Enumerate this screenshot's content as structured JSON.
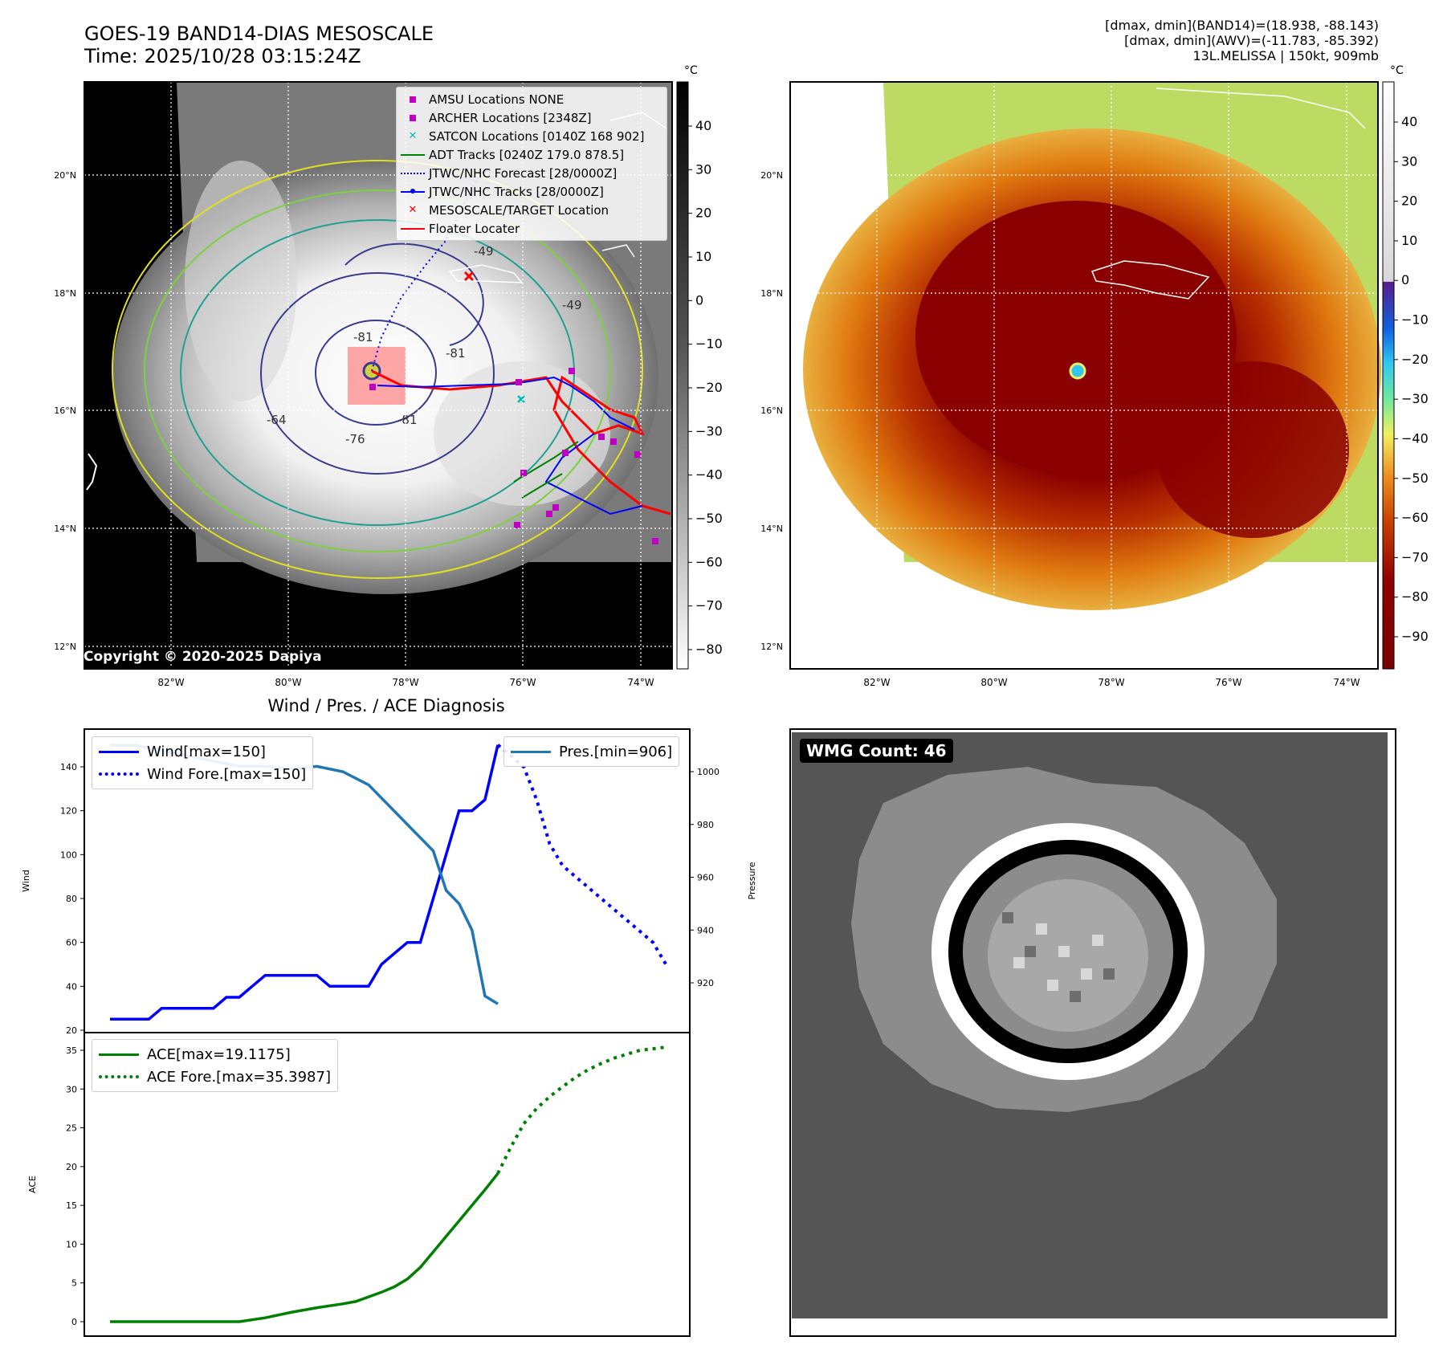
{
  "header": {
    "title_line1": "GOES-19 BAND14-DIAS MESOSCALE",
    "title_line2": "Time: 2025/10/28 03:15:24Z",
    "info_line1": "[dmax, dmin](BAND14)=(18.938, -88.143)",
    "info_line2": "[dmax, dmin](AWV)=(-11.783, -85.392)",
    "info_line3": "13L.MELISSA | 150kt, 909mb"
  },
  "map": {
    "lat_labels": [
      "20°N",
      "18°N",
      "16°N",
      "14°N",
      "12°N"
    ],
    "lon_labels": [
      "82°W",
      "80°W",
      "78°W",
      "76°W",
      "74°W"
    ],
    "contour_labels": [
      "-64",
      "-76",
      "-81",
      "-81",
      "-81",
      "-49",
      "-49"
    ],
    "copyright": "Copyright © 2020-2025 Dapiya",
    "colors": {
      "track_red": "#ff0000",
      "jtwc_blue": "#0000ff",
      "adt_green": "#008000",
      "amsu_magenta": "#c000c0",
      "satcon_cyan": "#00bcbc"
    }
  },
  "legend": {
    "items": [
      {
        "label": "AMSU Locations NONE",
        "icon": "magenta-square"
      },
      {
        "label": "ARCHER Locations [2348Z]",
        "icon": "magenta-square"
      },
      {
        "label": "SATCON Locations [0140Z 168 902]",
        "icon": "cyan-x"
      },
      {
        "label": "ADT Tracks [0240Z 179.0 878.5]",
        "icon": "green-line"
      },
      {
        "label": "JTWC/NHC Forecast [28/0000Z]",
        "icon": "blue-dotted-line"
      },
      {
        "label": "JTWC/NHC Tracks [28/0000Z]",
        "icon": "blue-line-dot"
      },
      {
        "label": "MESOSCALE/TARGET Location",
        "icon": "red-x"
      },
      {
        "label": "Floater Locater",
        "icon": "red-line"
      }
    ]
  },
  "colorbar_left": {
    "unit": "°C",
    "ticks": [
      "40",
      "30",
      "20",
      "10",
      "0",
      "−10",
      "−20",
      "−30",
      "−40",
      "−50",
      "−60",
      "−70",
      "−80"
    ]
  },
  "colorbar_right": {
    "unit": "°C",
    "ticks": [
      "40",
      "30",
      "20",
      "10",
      "0",
      "−10",
      "−20",
      "−30",
      "−40",
      "−50",
      "−60",
      "−70",
      "−80",
      "−90"
    ]
  },
  "wmg": {
    "label": "WMG Count: 46"
  },
  "chart_data": [
    {
      "type": "line",
      "title": "Wind / Pres. / ACE Diagnosis",
      "ylabel": "Wind",
      "y2label": "Pressure",
      "ylim": [
        20,
        154
      ],
      "y2lim": [
        906,
        1012
      ],
      "yticks": [
        "140",
        "120",
        "100",
        "80",
        "60",
        "40",
        "20"
      ],
      "y2ticks": [
        "1000",
        "980",
        "960",
        "940",
        "920"
      ],
      "series": [
        {
          "name": "Wind[max=150]",
          "axis": "left",
          "style": "solid",
          "color": "#0000ff",
          "x": [
            0,
            2,
            3,
            4,
            5,
            6,
            7,
            8,
            9,
            10,
            11,
            12,
            13,
            14,
            15,
            16,
            17,
            18,
            19,
            20,
            21,
            22,
            23,
            24,
            25,
            26,
            27,
            28,
            29,
            30
          ],
          "values": [
            25,
            25,
            25,
            30,
            30,
            30,
            30,
            30,
            35,
            35,
            40,
            45,
            45,
            45,
            45,
            45,
            40,
            40,
            40,
            40,
            50,
            55,
            60,
            60,
            80,
            100,
            120,
            120,
            125,
            150
          ]
        },
        {
          "name": "Wind Fore.[max=150]",
          "axis": "left",
          "style": "dotted",
          "color": "#0000ff",
          "x": [
            30,
            32,
            33,
            34,
            35,
            36,
            37,
            38,
            39,
            40,
            41,
            42,
            43
          ],
          "values": [
            150,
            140,
            125,
            105,
            95,
            90,
            85,
            80,
            75,
            70,
            65,
            60,
            50
          ]
        },
        {
          "name": "Pres.[min=906]",
          "axis": "right",
          "style": "solid",
          "color": "#1f77b4",
          "x": [
            0,
            2,
            4,
            6,
            8,
            10,
            12,
            14,
            16,
            18,
            20,
            22,
            23,
            24,
            25,
            26,
            27,
            28,
            29,
            30
          ],
          "values": [
            1010,
            1010,
            1008,
            1006,
            1004,
            1002,
            1002,
            1001,
            1002,
            1000,
            995,
            985,
            980,
            975,
            970,
            955,
            950,
            940,
            915,
            912
          ]
        }
      ]
    },
    {
      "type": "line",
      "ylabel": "ACE",
      "ylim": [
        -1,
        36
      ],
      "yticks": [
        "35",
        "30",
        "25",
        "20",
        "15",
        "10",
        "5",
        "0"
      ],
      "series": [
        {
          "name": "ACE[max=19.1175]",
          "style": "solid",
          "color": "#008000",
          "x": [
            0,
            4,
            8,
            10,
            12,
            14,
            16,
            18,
            19,
            20,
            21,
            22,
            23,
            24,
            25,
            26,
            27,
            28,
            29,
            30
          ],
          "values": [
            0,
            0,
            0,
            0,
            0.5,
            1.2,
            1.8,
            2.3,
            2.6,
            3.2,
            3.8,
            4.5,
            5.5,
            7,
            9,
            11,
            13,
            15,
            17,
            19.1175
          ]
        },
        {
          "name": "ACE Fore.[max=35.3987]",
          "style": "dotted",
          "color": "#008000",
          "x": [
            30,
            31,
            32,
            33,
            34,
            35,
            36,
            37,
            38,
            39,
            40,
            41,
            42,
            43
          ],
          "values": [
            19.1175,
            22.5,
            25.5,
            27.5,
            29,
            30.3,
            31.5,
            32.5,
            33.3,
            34,
            34.5,
            35,
            35.2,
            35.3987
          ]
        }
      ]
    }
  ]
}
